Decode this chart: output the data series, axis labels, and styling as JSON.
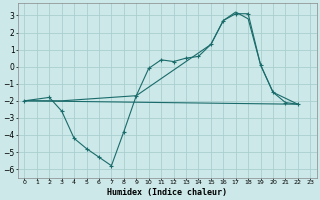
{
  "xlabel": "Humidex (Indice chaleur)",
  "background_color": "#cce8e8",
  "grid_color": "#aacece",
  "line_color": "#1a6b6b",
  "xlim": [
    -0.5,
    23.5
  ],
  "ylim": [
    -6.5,
    3.7
  ],
  "yticks": [
    -6,
    -5,
    -4,
    -3,
    -2,
    -1,
    0,
    1,
    2,
    3
  ],
  "xticks": [
    0,
    1,
    2,
    3,
    4,
    5,
    6,
    7,
    8,
    9,
    10,
    11,
    12,
    13,
    14,
    15,
    16,
    17,
    18,
    19,
    20,
    21,
    22,
    23
  ],
  "series_jagged": {
    "x": [
      0,
      2,
      3,
      4,
      5,
      6,
      7,
      8,
      9,
      10,
      11,
      12,
      13,
      14,
      15,
      16,
      17,
      18,
      19,
      20,
      21,
      22
    ],
    "y": [
      -2.0,
      -1.8,
      -2.6,
      -4.2,
      -4.8,
      -5.3,
      -5.8,
      -3.8,
      -1.7,
      -0.1,
      0.4,
      0.3,
      0.5,
      0.6,
      1.3,
      2.7,
      3.1,
      3.1,
      0.1,
      -1.5,
      -2.1,
      -2.2
    ]
  },
  "series_smooth": {
    "x": [
      0,
      3,
      9,
      15,
      16,
      17,
      18,
      19,
      20,
      22
    ],
    "y": [
      -2.0,
      -2.0,
      -1.7,
      1.3,
      2.7,
      3.2,
      2.8,
      0.1,
      -1.5,
      -2.2
    ]
  },
  "series_flat": {
    "x": [
      0,
      22
    ],
    "y": [
      -2.0,
      -2.2
    ]
  }
}
